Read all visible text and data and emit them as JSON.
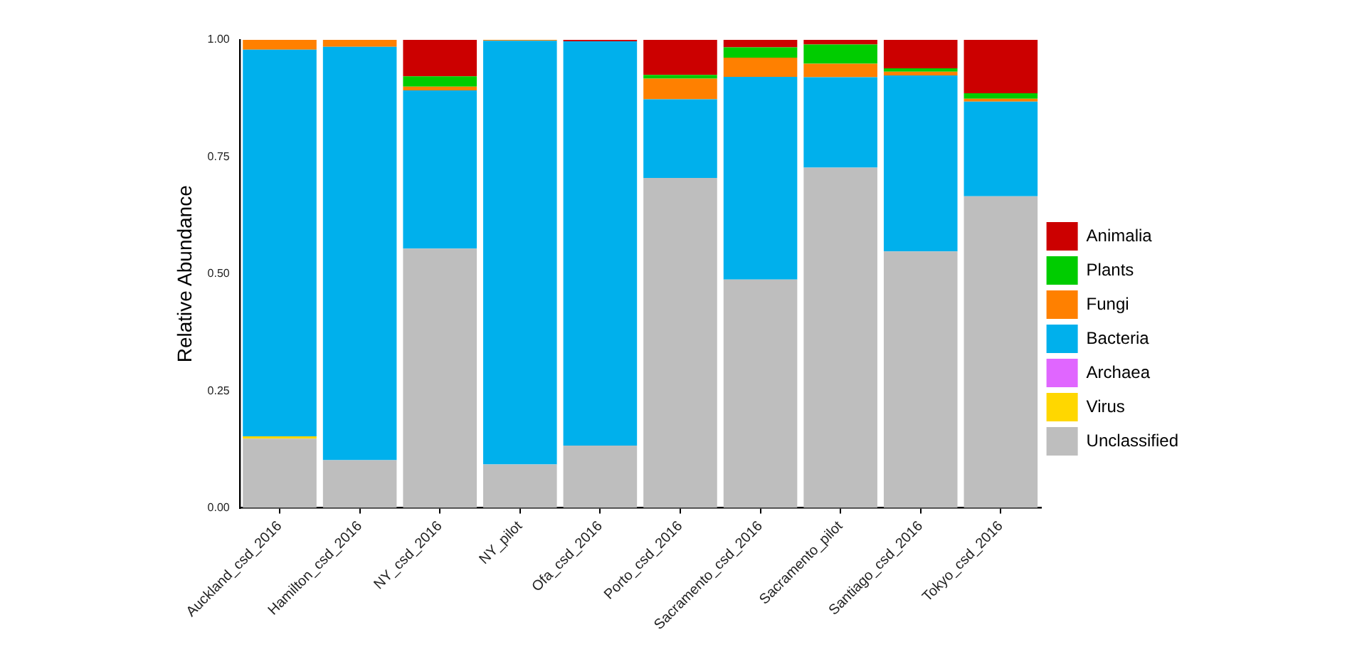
{
  "chart_data": {
    "type": "bar",
    "stacked": true,
    "ylabel": "Relative Abundance",
    "legend": "right",
    "grid": false,
    "categories": [
      "Auckland_csd_2016",
      "Hamilton_csd_2016",
      "NY_csd_2016",
      "NY_pilot",
      "Ofa_csd_2016",
      "Porto_csd_2016",
      "Sacramento_csd_2016",
      "Sacramento_pilot",
      "Santiago_csd_2016",
      "Tokyo_csd_2016"
    ],
    "ylim": [
      0,
      1
    ],
    "yticks": [
      {
        "value": 0,
        "label": "0.00"
      },
      {
        "value": 0.25,
        "label": "0.25"
      },
      {
        "value": 0.5,
        "label": "0.50"
      },
      {
        "value": 0.75,
        "label": "0.75"
      },
      {
        "value": 1,
        "label": "1.00"
      }
    ],
    "series": [
      {
        "name": "Unclassified",
        "color": "#bebebe",
        "values": [
          0.148,
          0.102,
          0.554,
          0.093,
          0.133,
          0.705,
          0.488,
          0.727,
          0.548,
          0.666
        ]
      },
      {
        "name": "Virus",
        "color": "#ffd700",
        "values": [
          0.005,
          0,
          0,
          0,
          0,
          0,
          0,
          0,
          0,
          0
        ]
      },
      {
        "name": "Archaea",
        "color": "#e066ff",
        "values": [
          0,
          0,
          0,
          0,
          0,
          0,
          0,
          0,
          0,
          0
        ]
      },
      {
        "name": "Bacteria",
        "color": "#00b0ec",
        "values": [
          0.826,
          0.883,
          0.338,
          0.905,
          0.864,
          0.168,
          0.433,
          0.193,
          0.376,
          0.202
        ]
      },
      {
        "name": "Fungi",
        "color": "#ff8000",
        "values": [
          0.021,
          0.015,
          0.008,
          0.002,
          0,
          0.044,
          0.041,
          0.029,
          0.008,
          0.006
        ]
      },
      {
        "name": "Plants",
        "color": "#00cc00",
        "values": [
          0,
          0,
          0.022,
          0,
          0,
          0.008,
          0.022,
          0.041,
          0.007,
          0.012
        ]
      },
      {
        "name": "Animalia",
        "color": "#cc0000",
        "values": [
          0,
          0,
          0.078,
          0,
          0.003,
          0.075,
          0.016,
          0.01,
          0.061,
          0.114
        ]
      }
    ]
  }
}
